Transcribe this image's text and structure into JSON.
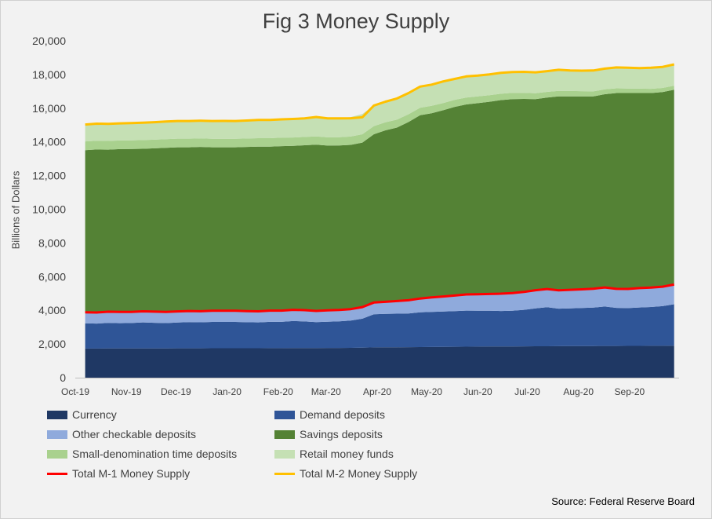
{
  "chart_data": {
    "type": "area",
    "title": "Fig 3 Money Supply",
    "ylabel": "Billions of Dollars",
    "xlabel": "",
    "ylim": [
      0,
      20000
    ],
    "yticks": [
      0,
      2000,
      4000,
      6000,
      8000,
      10000,
      12000,
      14000,
      16000,
      18000,
      20000
    ],
    "x_tick_labels": [
      "Oct-19",
      "Nov-19",
      "Dec-19",
      "Jan-20",
      "Feb-20",
      "Mar-20",
      "Apr-20",
      "May-20",
      "Jun-20",
      "Jul-20",
      "Aug-20",
      "Sep-20"
    ],
    "x": [
      "2019-10-07",
      "2019-10-14",
      "2019-10-21",
      "2019-10-28",
      "2019-11-04",
      "2019-11-11",
      "2019-11-18",
      "2019-11-25",
      "2019-12-02",
      "2019-12-09",
      "2019-12-16",
      "2019-12-23",
      "2019-12-30",
      "2020-01-06",
      "2020-01-13",
      "2020-01-20",
      "2020-01-27",
      "2020-02-03",
      "2020-02-10",
      "2020-02-17",
      "2020-02-24",
      "2020-03-02",
      "2020-03-09",
      "2020-03-16",
      "2020-03-23",
      "2020-03-30",
      "2020-04-06",
      "2020-04-13",
      "2020-04-20",
      "2020-04-27",
      "2020-05-04",
      "2020-05-11",
      "2020-05-18",
      "2020-05-25",
      "2020-06-01",
      "2020-06-08",
      "2020-06-15",
      "2020-06-22",
      "2020-06-29",
      "2020-07-06",
      "2020-07-13",
      "2020-07-20",
      "2020-07-27",
      "2020-08-03",
      "2020-08-10",
      "2020-08-17",
      "2020-08-24",
      "2020-08-31",
      "2020-09-07",
      "2020-09-14",
      "2020-09-21",
      "2020-09-28"
    ],
    "grid": false,
    "legend_position": "bottom",
    "stacked_series": [
      {
        "name": "Currency",
        "color": "#1f3864",
        "values": [
          1730,
          1730,
          1735,
          1735,
          1735,
          1740,
          1740,
          1740,
          1745,
          1745,
          1745,
          1750,
          1750,
          1750,
          1750,
          1750,
          1755,
          1755,
          1760,
          1760,
          1760,
          1765,
          1765,
          1770,
          1780,
          1800,
          1805,
          1810,
          1815,
          1820,
          1825,
          1830,
          1835,
          1840,
          1845,
          1850,
          1850,
          1855,
          1860,
          1865,
          1865,
          1870,
          1875,
          1875,
          1880,
          1885,
          1885,
          1890,
          1890,
          1895,
          1895,
          1900
        ]
      },
      {
        "name": "Demand deposits",
        "color": "#2f5597",
        "values": [
          1500,
          1480,
          1520,
          1500,
          1510,
          1540,
          1520,
          1500,
          1530,
          1550,
          1540,
          1560,
          1560,
          1560,
          1540,
          1530,
          1560,
          1560,
          1600,
          1580,
          1540,
          1560,
          1580,
          1620,
          1720,
          1960,
          1980,
          1990,
          2000,
          2060,
          2080,
          2100,
          2120,
          2140,
          2130,
          2120,
          2110,
          2120,
          2170,
          2250,
          2320,
          2230,
          2240,
          2260,
          2280,
          2340,
          2260,
          2240,
          2280,
          2300,
          2350,
          2460
        ]
      },
      {
        "name": "Other checkable deposits",
        "color": "#8faadc",
        "values": [
          650,
          660,
          660,
          665,
          660,
          660,
          660,
          665,
          660,
          665,
          660,
          665,
          665,
          660,
          660,
          660,
          665,
          665,
          670,
          670,
          665,
          670,
          675,
          680,
          690,
          700,
          720,
          750,
          780,
          820,
          860,
          890,
          920,
          960,
          980,
          1000,
          1030,
          1050,
          1060,
          1080,
          1080,
          1090,
          1100,
          1110,
          1120,
          1130,
          1130,
          1140,
          1150,
          1150,
          1160,
          1170
        ]
      },
      {
        "name": "Savings deposits",
        "color": "#548235",
        "values": [
          9630,
          9680,
          9625,
          9670,
          9675,
          9650,
          9700,
          9745,
          9745,
          9720,
          9755,
          9705,
          9705,
          9710,
          9750,
          9780,
          9740,
          9770,
          9730,
          9790,
          9865,
          9785,
          9770,
          9755,
          9770,
          9990,
          10180,
          10300,
          10585,
          10880,
          10935,
          11060,
          11205,
          11285,
          11345,
          11410,
          11490,
          11515,
          11460,
          11345,
          11365,
          11510,
          11485,
          11455,
          11420,
          11475,
          11625,
          11630,
          11580,
          11555,
          11555,
          11570
        ]
      },
      {
        "name": "Small-denomination time deposits",
        "color": "#a9d18e",
        "values": [
          520,
          520,
          515,
          515,
          515,
          515,
          510,
          510,
          510,
          510,
          505,
          505,
          505,
          500,
          500,
          500,
          500,
          500,
          500,
          495,
          495,
          490,
          490,
          490,
          490,
          485,
          480,
          470,
          460,
          450,
          440,
          430,
          420,
          410,
          400,
          390,
          380,
          370,
          360,
          350,
          340,
          330,
          320,
          310,
          300,
          290,
          280,
          270,
          260,
          250,
          245,
          240
        ]
      },
      {
        "name": "Retail money funds",
        "color": "#c5e0b4",
        "values": [
          1000,
          1010,
          1015,
          1015,
          1025,
          1035,
          1040,
          1050,
          1050,
          1050,
          1055,
          1055,
          1060,
          1060,
          1070,
          1080,
          1080,
          1090,
          1100,
          1110,
          1120,
          1130,
          1140,
          1160,
          1200,
          1225,
          1220,
          1230,
          1260,
          1250,
          1260,
          1280,
          1240,
          1255,
          1240,
          1240,
          1240,
          1240,
          1250,
          1240,
          1230,
          1250,
          1220,
          1220,
          1240,
          1230,
          1240,
          1230,
          1220,
          1250,
          1250,
          1260
        ]
      }
    ],
    "line_series": [
      {
        "name": "Total M-1 Money Supply",
        "color": "#ff0000",
        "values": [
          3880,
          3870,
          3915,
          3900,
          3905,
          3940,
          3920,
          3905,
          3935,
          3960,
          3945,
          3975,
          3975,
          3970,
          3950,
          3940,
          3980,
          3980,
          4030,
          4010,
          3965,
          3995,
          4020,
          4070,
          4190,
          4460,
          4505,
          4550,
          4595,
          4700,
          4765,
          4820,
          4875,
          4940,
          4955,
          4970,
          4990,
          5025,
          5090,
          5195,
          5265,
          5190,
          5215,
          5245,
          5280,
          5355,
          5275,
          5270,
          5320,
          5345,
          5405,
          5530
        ]
      },
      {
        "name": "Total M-2 Money Supply",
        "color": "#ffc000",
        "values": [
          15030,
          15080,
          15070,
          15100,
          15120,
          15140,
          15170,
          15210,
          15240,
          15240,
          15260,
          15240,
          15245,
          15240,
          15270,
          15300,
          15300,
          15340,
          15360,
          15395,
          15480,
          15400,
          15400,
          15405,
          15460,
          16160,
          16385,
          16580,
          16900,
          17280,
          17400,
          17590,
          17740,
          17890,
          17940,
          18010,
          18100,
          18150,
          18160,
          18130,
          18200,
          18280,
          18240,
          18230,
          18240,
          18350,
          18420,
          18400,
          18380,
          18400,
          18450,
          18600
        ]
      }
    ]
  },
  "source": "Source: Federal Reserve Board"
}
